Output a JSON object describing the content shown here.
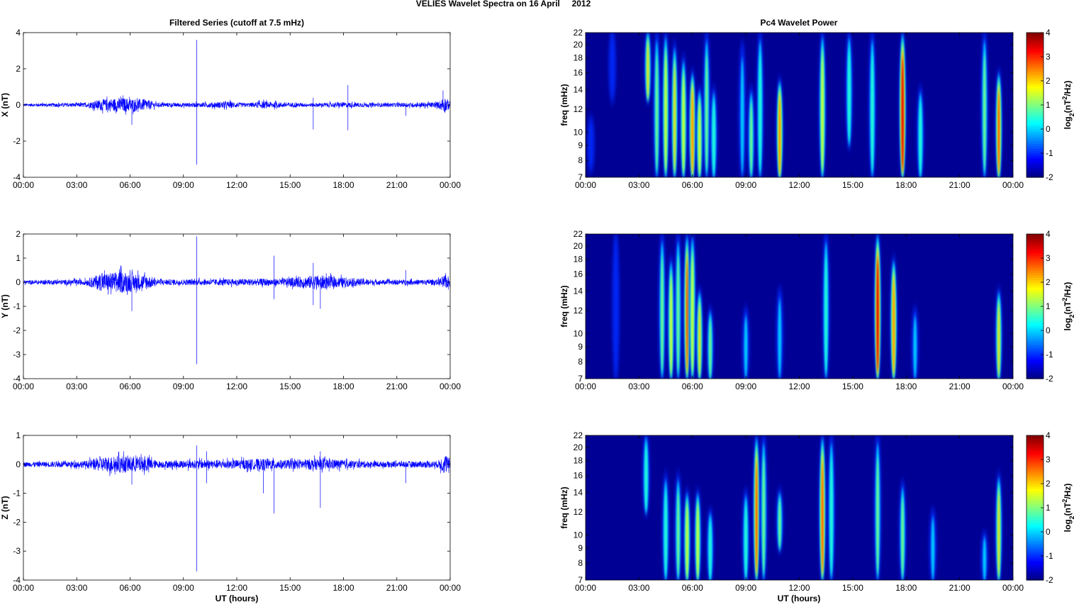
{
  "figure_title": "VELIES Wavelet Spectra on 16 April     2012",
  "left_title": "Filtered Series (cutoff at 7.5 mHz)",
  "right_title": "Pc4 Wavelet Power",
  "xlabel": "UT (hours)",
  "time_ticks": [
    "00:00",
    "03:00",
    "06:00",
    "09:00",
    "12:00",
    "15:00",
    "18:00",
    "21:00",
    "00:00"
  ],
  "colors": {
    "trace": "#0000ff",
    "background_power": "#00008f"
  },
  "chart_data": [
    {
      "type": "line",
      "component": "X",
      "ylabel": "X (nT)",
      "xlim": [
        0,
        24
      ],
      "ylim": [
        -4,
        4
      ],
      "yticks": [
        -4,
        -2,
        0,
        2,
        4
      ],
      "noise_envelope": [
        [
          0,
          0.08
        ],
        [
          3.5,
          0.12
        ],
        [
          4.3,
          0.3
        ],
        [
          5.5,
          0.4
        ],
        [
          7,
          0.3
        ],
        [
          7.5,
          0.12
        ],
        [
          10,
          0.12
        ],
        [
          11.5,
          0.2
        ],
        [
          12.5,
          0.1
        ],
        [
          13.5,
          0.2
        ],
        [
          14.5,
          0.15
        ],
        [
          16,
          0.1
        ],
        [
          18,
          0.15
        ],
        [
          20,
          0.1
        ],
        [
          23.3,
          0.15
        ],
        [
          23.7,
          0.45
        ],
        [
          24,
          0.2
        ]
      ],
      "spikes": [
        [
          6.1,
          -1.1
        ],
        [
          9.75,
          3.6
        ],
        [
          9.75,
          -3.3
        ],
        [
          16.3,
          -1.35
        ],
        [
          16.3,
          0.4
        ],
        [
          18.25,
          1.1
        ],
        [
          18.25,
          -1.4
        ],
        [
          21.5,
          -0.6
        ],
        [
          23.6,
          0.8
        ]
      ]
    },
    {
      "type": "line",
      "component": "Y",
      "ylabel": "Y (nT)",
      "xlim": [
        0,
        24
      ],
      "ylim": [
        -4,
        2
      ],
      "yticks": [
        -4,
        -3,
        -2,
        -1,
        0,
        1,
        2
      ],
      "noise_envelope": [
        [
          0,
          0.08
        ],
        [
          3.5,
          0.12
        ],
        [
          4.3,
          0.35
        ],
        [
          5.5,
          0.45
        ],
        [
          7,
          0.3
        ],
        [
          7.5,
          0.12
        ],
        [
          10,
          0.12
        ],
        [
          13.5,
          0.15
        ],
        [
          14.5,
          0.15
        ],
        [
          16.5,
          0.3
        ],
        [
          18,
          0.2
        ],
        [
          20,
          0.1
        ],
        [
          23.3,
          0.12
        ],
        [
          23.7,
          0.3
        ],
        [
          24,
          0.2
        ]
      ],
      "spikes": [
        [
          6.1,
          -1.2
        ],
        [
          9.75,
          1.9
        ],
        [
          9.75,
          -3.4
        ],
        [
          14.1,
          1.1
        ],
        [
          14.1,
          -0.7
        ],
        [
          16.3,
          -0.95
        ],
        [
          16.3,
          0.8
        ],
        [
          16.7,
          -1.1
        ],
        [
          21.5,
          0.5
        ]
      ]
    },
    {
      "type": "line",
      "component": "Z",
      "ylabel": "Z (nT)",
      "xlim": [
        0,
        24
      ],
      "ylim": [
        -4,
        1
      ],
      "yticks": [
        -4,
        -3,
        -2,
        -1,
        0,
        1
      ],
      "noise_envelope": [
        [
          0,
          0.08
        ],
        [
          3.5,
          0.12
        ],
        [
          4.3,
          0.25
        ],
        [
          5.5,
          0.3
        ],
        [
          7,
          0.25
        ],
        [
          7.5,
          0.12
        ],
        [
          10,
          0.15
        ],
        [
          11.5,
          0.15
        ],
        [
          13.5,
          0.2
        ],
        [
          14.5,
          0.15
        ],
        [
          16.5,
          0.2
        ],
        [
          18,
          0.15
        ],
        [
          20,
          0.1
        ],
        [
          23.3,
          0.12
        ],
        [
          23.7,
          0.35
        ],
        [
          24,
          0.2
        ]
      ],
      "spikes": [
        [
          6.1,
          -0.7
        ],
        [
          9.75,
          0.65
        ],
        [
          9.75,
          -3.7
        ],
        [
          10.3,
          -0.65
        ],
        [
          10.3,
          0.45
        ],
        [
          13.5,
          -1.0
        ],
        [
          14.1,
          -1.7
        ],
        [
          16.7,
          -1.5
        ],
        [
          16.7,
          0.45
        ],
        [
          21.5,
          -0.65
        ]
      ]
    },
    {
      "type": "heatmap",
      "component": "X",
      "ylabel": "freq (mHz)",
      "yscale": "log",
      "ylim": [
        7,
        22
      ],
      "yticks": [
        7,
        8,
        9,
        10,
        12,
        14,
        16,
        18,
        20,
        22
      ],
      "clim": [
        -2,
        4
      ],
      "events": [
        [
          0.3,
          7.5,
          11,
          -1
        ],
        [
          1.5,
          13,
          22,
          -1
        ],
        [
          3.5,
          13,
          22,
          2
        ],
        [
          4.0,
          7,
          22,
          1
        ],
        [
          4.5,
          7,
          22,
          1.5
        ],
        [
          5.0,
          7,
          20,
          2
        ],
        [
          5.5,
          7,
          18,
          1.5
        ],
        [
          6.0,
          7,
          16,
          2.5
        ],
        [
          6.4,
          7,
          14,
          1.5
        ],
        [
          6.8,
          7,
          22,
          1
        ],
        [
          7.2,
          7,
          14,
          0.5
        ],
        [
          8.8,
          7,
          20,
          0
        ],
        [
          9.3,
          7,
          14,
          1
        ],
        [
          9.8,
          7,
          22,
          0.5
        ],
        [
          10.9,
          7,
          15,
          2.5
        ],
        [
          13.3,
          7,
          22,
          1.5
        ],
        [
          14.8,
          9,
          22,
          0.5
        ],
        [
          16.1,
          7,
          22,
          0.5
        ],
        [
          17.8,
          7,
          22,
          3.5
        ],
        [
          18.8,
          7,
          14,
          0.5
        ],
        [
          22.4,
          7,
          22,
          1
        ],
        [
          23.2,
          7,
          16,
          3
        ]
      ]
    },
    {
      "type": "heatmap",
      "component": "Y",
      "ylabel": "freq (mHz)",
      "yscale": "log",
      "ylim": [
        7,
        22
      ],
      "yticks": [
        7,
        8,
        9,
        10,
        12,
        14,
        16,
        18,
        20,
        22
      ],
      "clim": [
        -2,
        4
      ],
      "events": [
        [
          1.7,
          7,
          22,
          -1
        ],
        [
          4.3,
          7,
          22,
          1
        ],
        [
          4.8,
          7,
          18,
          1.5
        ],
        [
          5.2,
          7,
          22,
          1
        ],
        [
          5.7,
          7,
          22,
          3
        ],
        [
          6.0,
          7,
          22,
          1.5
        ],
        [
          6.4,
          7,
          14,
          2
        ],
        [
          7.0,
          7,
          12,
          1
        ],
        [
          9.0,
          7,
          12,
          0
        ],
        [
          10.9,
          7,
          14,
          0
        ],
        [
          13.5,
          7,
          22,
          0.5
        ],
        [
          16.4,
          7,
          22,
          3.5
        ],
        [
          17.3,
          7,
          18,
          2.5
        ],
        [
          18.5,
          7,
          12,
          0
        ],
        [
          23.2,
          7,
          14,
          2
        ]
      ]
    },
    {
      "type": "heatmap",
      "component": "Z",
      "ylabel": "freq (mHz)",
      "yscale": "log",
      "ylim": [
        7,
        22
      ],
      "yticks": [
        7,
        8,
        9,
        10,
        12,
        14,
        16,
        18,
        20,
        22
      ],
      "clim": [
        -2,
        4
      ],
      "events": [
        [
          3.4,
          12,
          22,
          0.5
        ],
        [
          4.5,
          7,
          16,
          0.5
        ],
        [
          5.2,
          7,
          16,
          1
        ],
        [
          5.7,
          7,
          14,
          1.5
        ],
        [
          6.3,
          7,
          14,
          1.5
        ],
        [
          7.0,
          7,
          12,
          0.5
        ],
        [
          9.0,
          7,
          14,
          0.5
        ],
        [
          9.6,
          7,
          22,
          3
        ],
        [
          10.0,
          7,
          22,
          1
        ],
        [
          10.9,
          9,
          14,
          1
        ],
        [
          13.3,
          7,
          22,
          3
        ],
        [
          13.8,
          7,
          22,
          0.5
        ],
        [
          16.4,
          7,
          22,
          1
        ],
        [
          17.8,
          7,
          15,
          1
        ],
        [
          19.5,
          7,
          12,
          0
        ],
        [
          22.4,
          7,
          10,
          0
        ],
        [
          23.2,
          7,
          16,
          2
        ]
      ]
    }
  ],
  "colorbar": {
    "label": "log2(nT2/Hz)",
    "ticks": [
      -2,
      -1,
      0,
      1,
      2,
      3,
      4
    ]
  }
}
